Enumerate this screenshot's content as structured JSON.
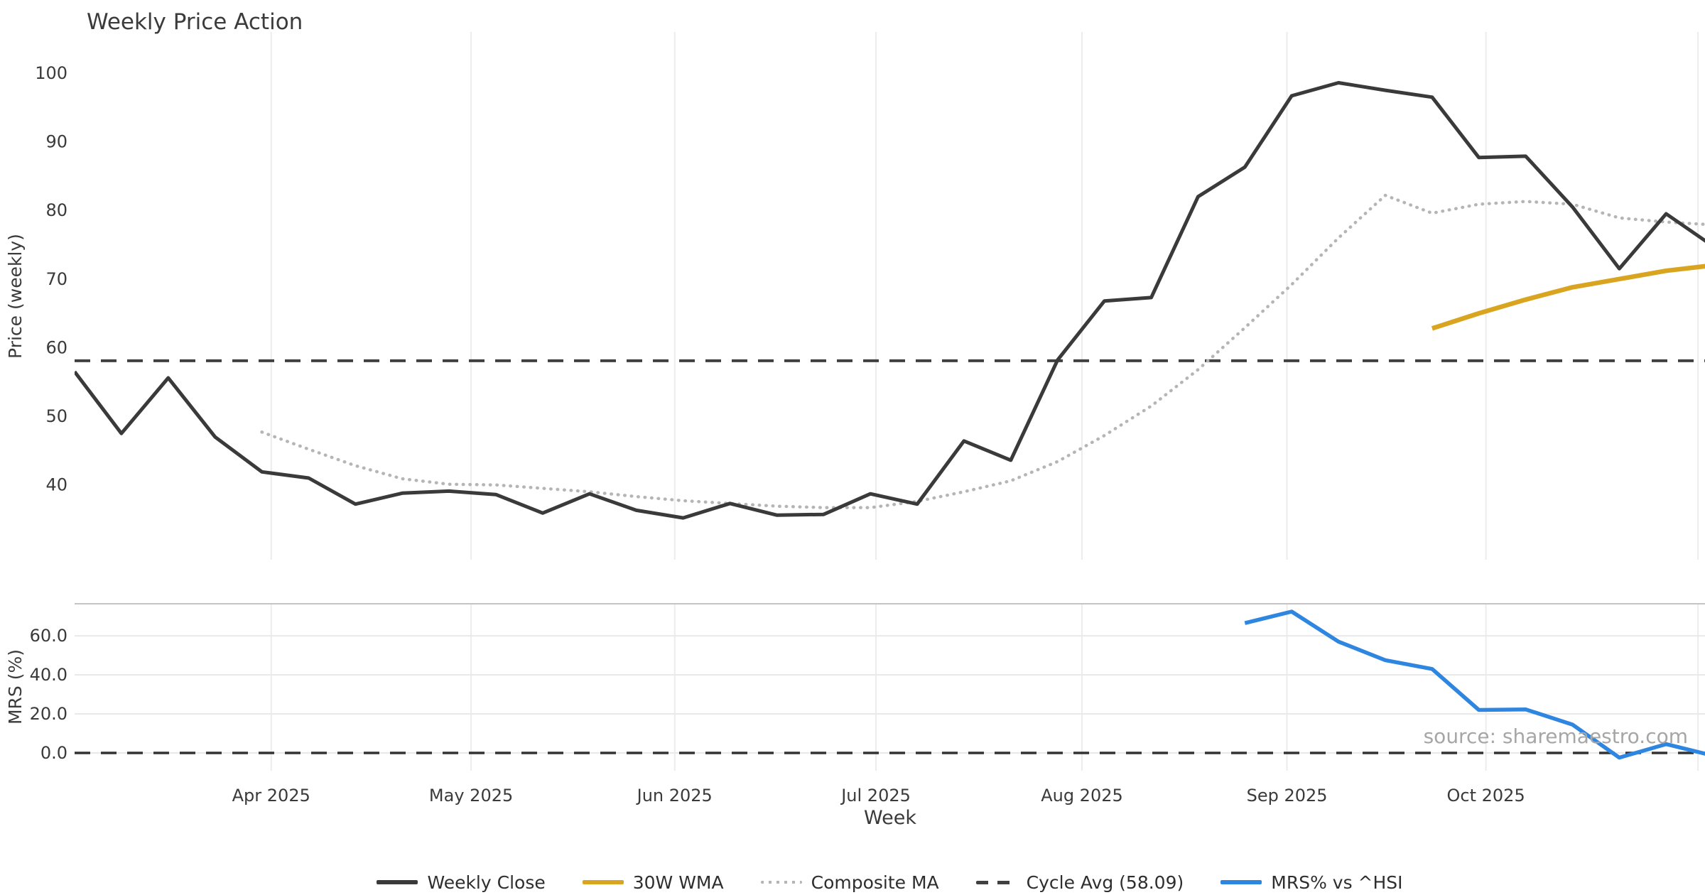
{
  "chart_data": {
    "type": "line",
    "title": "Weekly Price Action",
    "source_note": "source: sharemaestro.com",
    "x_axis": {
      "label": "Week",
      "unit": "weekly-points",
      "xlim": [
        0,
        34.83
      ],
      "month_ticks": [
        {
          "label": "Apr 2025",
          "week": 4.2
        },
        {
          "label": "May 2025",
          "week": 8.47
        },
        {
          "label": "Jun 2025",
          "week": 12.82
        },
        {
          "label": "Jul 2025",
          "week": 17.12
        },
        {
          "label": "Aug 2025",
          "week": 21.52
        },
        {
          "label": "Sep 2025",
          "week": 25.9
        },
        {
          "label": "Oct 2025",
          "week": 30.15
        },
        {
          "label": "",
          "week": 34.68
        }
      ]
    },
    "panels": [
      {
        "name": "price",
        "ylabel": "Price (weekly)",
        "ylim": [
          29.1,
          106.0
        ],
        "yticks": [
          {
            "label": "100",
            "value": 100
          },
          {
            "label": "90",
            "value": 90
          },
          {
            "label": "80",
            "value": 80
          },
          {
            "label": "70",
            "value": 70
          },
          {
            "label": "60",
            "value": 60
          },
          {
            "label": "50",
            "value": 50
          },
          {
            "label": "40",
            "value": 40
          }
        ],
        "grid": {
          "vertical": true,
          "horizontal": false
        },
        "series": [
          {
            "name": "Cycle Avg (58.09)",
            "kind": "hline",
            "style": "dashed",
            "color": "#404040",
            "width": 4,
            "value": 58.09
          },
          {
            "name": "Composite MA",
            "kind": "line",
            "style": "dotted",
            "color": "#b5b5b5",
            "width": 4.5,
            "start_week": 4,
            "values": [
              47.7,
              45.2,
              42.8,
              40.9,
              40.1,
              40.0,
              39.5,
              39.0,
              38.3,
              37.7,
              37.3,
              36.9,
              36.7,
              36.7,
              37.6,
              39.0,
              40.6,
              43.4,
              47.2,
              51.5,
              56.8,
              62.9,
              69.2,
              76.0,
              82.2,
              79.6,
              80.9,
              81.3,
              80.9,
              78.9,
              78.3,
              77.9
            ]
          },
          {
            "name": "30W WMA",
            "kind": "line",
            "style": "solid",
            "color": "#d9a521",
            "width": 6.5,
            "start_week": 29,
            "values": [
              62.8,
              65.0,
              67.0,
              68.8,
              70.0,
              71.2,
              72.0
            ]
          },
          {
            "name": "Weekly Close",
            "kind": "line",
            "style": "solid",
            "color": "#3a3a3a",
            "width": 5,
            "start_week": 0,
            "values": [
              56.5,
              47.5,
              55.6,
              47.0,
              41.9,
              41.0,
              37.2,
              38.8,
              39.1,
              38.6,
              35.9,
              38.7,
              36.3,
              35.2,
              37.3,
              35.6,
              35.7,
              38.7,
              37.2,
              46.4,
              43.6,
              58.2,
              66.8,
              67.3,
              82.0,
              86.3,
              96.7,
              98.6,
              97.5,
              96.5,
              87.7,
              87.9,
              80.5,
              71.5,
              79.5,
              74.8
            ]
          }
        ]
      },
      {
        "name": "mrs",
        "ylabel": "MRS (%)",
        "ylim": [
          -9.1,
          76.4
        ],
        "yticks": [
          {
            "label": "60.0",
            "value": 60
          },
          {
            "label": "40.0",
            "value": 40
          },
          {
            "label": "20.0",
            "value": 20
          },
          {
            "label": "0.0",
            "value": 0
          }
        ],
        "grid": {
          "vertical": true,
          "horizontal": true
        },
        "series": [
          {
            "name": "Zero Line",
            "kind": "hline",
            "style": "dashed",
            "color": "#333333",
            "width": 3.5,
            "value": 0
          },
          {
            "name": "MRS% vs ^HSI",
            "kind": "line",
            "style": "solid",
            "color": "#2e86e0",
            "width": 5.5,
            "start_week": 25,
            "values": [
              66.5,
              72.4,
              57.0,
              47.5,
              43.0,
              22.0,
              22.3,
              14.5,
              -2.4,
              4.5,
              -1.4
            ]
          }
        ]
      }
    ],
    "legend": {
      "position": "bottom-center",
      "entries": [
        {
          "label": "Weekly Close",
          "style": "solid",
          "color": "#3a3a3a"
        },
        {
          "label": "30W WMA",
          "style": "solid",
          "color": "#d9a521"
        },
        {
          "label": "Composite MA",
          "style": "dotted",
          "color": "#b5b5b5"
        },
        {
          "label": "Cycle Avg (58.09)",
          "style": "dashed",
          "color": "#404040"
        },
        {
          "label": "MRS% vs ^HSI",
          "style": "solid",
          "color": "#2e86e0"
        }
      ]
    },
    "colors": {
      "background": "#ffffff",
      "grid": "#ececec",
      "panel_separator": "#c4c4c4",
      "tick_text": "#3a3a3a",
      "source_text": "#a6a6a6"
    }
  }
}
